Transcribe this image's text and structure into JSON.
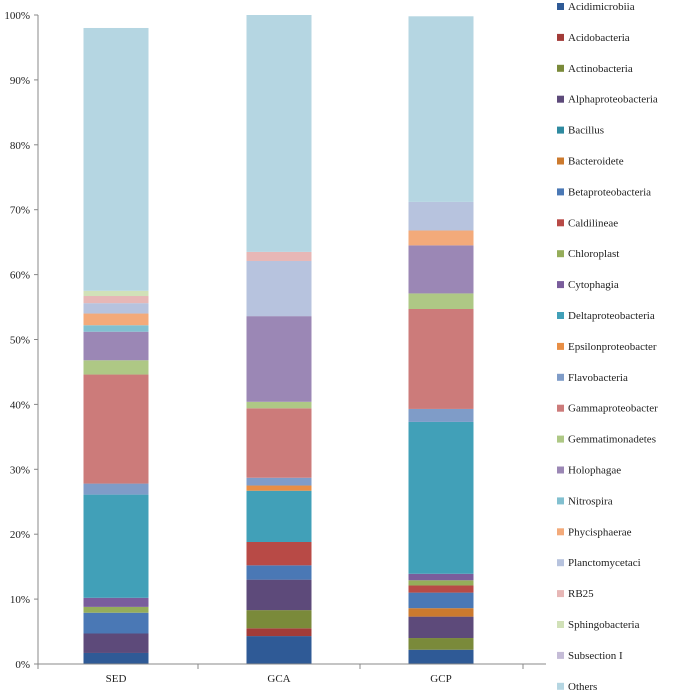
{
  "chart_data": {
    "type": "bar",
    "stacked": true,
    "percent": true,
    "categories": [
      "SED",
      "GCA",
      "GCP"
    ],
    "ylim": [
      0,
      100
    ],
    "yticks": [
      "0%",
      "10%",
      "20%",
      "30%",
      "40%",
      "50%",
      "60%",
      "70%",
      "80%",
      "90%",
      "100%"
    ],
    "grid": false,
    "legend_position": "right",
    "series": [
      {
        "name": "Acidimicrobiia",
        "color": "#2f5a96",
        "values": [
          1.7,
          4.3,
          2.2
        ]
      },
      {
        "name": "Acidobacteria",
        "color": "#a23b38",
        "values": [
          0.0,
          1.2,
          0.0
        ]
      },
      {
        "name": "Actinobacteria",
        "color": "#7a8a3a",
        "values": [
          0.0,
          2.8,
          1.8
        ]
      },
      {
        "name": "Alphaproteobacteria",
        "color": "#5d4a7a",
        "values": [
          3.0,
          4.7,
          3.3
        ]
      },
      {
        "name": "Bacillus",
        "color": "#2f8aa0",
        "values": [
          0.0,
          0.0,
          0.0
        ]
      },
      {
        "name": "Bacteroidete",
        "color": "#cc7a2e",
        "values": [
          0.0,
          0.0,
          1.3
        ]
      },
      {
        "name": "Betaproteobacteria",
        "color": "#4a78b5",
        "values": [
          3.2,
          2.2,
          2.4
        ]
      },
      {
        "name": "Caldilineae",
        "color": "#b84a46",
        "values": [
          0.0,
          3.6,
          1.1
        ]
      },
      {
        "name": "Chloroplast",
        "color": "#95ad5a",
        "values": [
          0.9,
          0.0,
          0.8
        ]
      },
      {
        "name": "Cytophagia",
        "color": "#7a5d9c",
        "values": [
          1.4,
          0.0,
          1.0
        ]
      },
      {
        "name": "Deltaproteobacteria",
        "color": "#41a0b8",
        "values": [
          15.9,
          7.9,
          23.4
        ]
      },
      {
        "name": "Epsilonproteobacteria",
        "color": "#e88e45",
        "values": [
          0.0,
          0.8,
          0.0
        ]
      },
      {
        "name": "Flavobacteria",
        "color": "#7f9cc8",
        "values": [
          1.7,
          1.2,
          2.0
        ]
      },
      {
        "name": "Gammaproteobacteria",
        "color": "#cc7b7a",
        "values": [
          16.8,
          10.7,
          15.4
        ]
      },
      {
        "name": "Gemmatimonadetes",
        "color": "#aec885",
        "values": [
          2.2,
          1.0,
          2.4
        ]
      },
      {
        "name": "Holophagae",
        "color": "#9b87b5",
        "values": [
          4.4,
          13.2,
          7.4
        ]
      },
      {
        "name": "Nitrospira",
        "color": "#82c0d0",
        "values": [
          1.0,
          0.0,
          0.0
        ]
      },
      {
        "name": "Phycisphaerae",
        "color": "#f3aa7a",
        "values": [
          1.8,
          0.0,
          2.3
        ]
      },
      {
        "name": "Planctomycetaci",
        "color": "#b7c3de",
        "values": [
          1.6,
          8.5,
          4.4
        ]
      },
      {
        "name": "RB25",
        "color": "#e7b7b6",
        "values": [
          1.1,
          1.4,
          0.0
        ]
      },
      {
        "name": "Sphingobacteria",
        "color": "#d1e1b8",
        "values": [
          0.8,
          0.0,
          0.0
        ]
      },
      {
        "name": "Subsection I",
        "color": "#c5bcd7",
        "values": [
          0.0,
          0.0,
          0.0
        ]
      },
      {
        "name": "Others",
        "color": "#b5d6e2",
        "values": [
          40.5,
          36.5,
          28.6
        ]
      }
    ],
    "legend_labels": [
      "Acidimicrobiia",
      "Acidobacteria",
      "Actinobacteria",
      "Alphaproteobacteria",
      "Bacillus",
      "Bacteroidete",
      "Betaproteobacteria",
      "Caldilineae",
      "Chloroplast",
      "Cytophagia",
      "Deltaproteobacteria",
      "Epsilonproteobacter",
      "Flavobacteria",
      "Gammaproteobacter",
      "Gemmatimonadetes",
      "Holophagae",
      "Nitrospira",
      "Phycisphaerae",
      "Planctomycetaci",
      "RB25",
      "Sphingobacteria",
      "Subsection I",
      "Others"
    ],
    "legend_colors": [
      "#2f5a96",
      "#a23b38",
      "#7a8a3a",
      "#5d4a7a",
      "#2f8aa0",
      "#cc7a2e",
      "#4a78b5",
      "#b84a46",
      "#95ad5a",
      "#7a5d9c",
      "#41a0b8",
      "#e88e45",
      "#7f9cc8",
      "#cc7b7a",
      "#aec885",
      "#9b87b5",
      "#82c0d0",
      "#f3aa7a",
      "#b7c3de",
      "#e7b7b6",
      "#d1e1b8",
      "#c5bcd7",
      "#b5d6e2"
    ]
  }
}
